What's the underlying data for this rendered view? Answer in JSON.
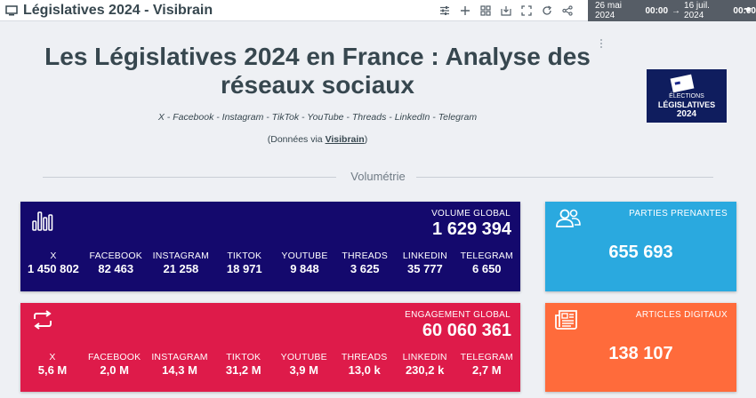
{
  "app": {
    "title": "Législatives 2024 - Visibrain",
    "toolbar_icons": [
      "sliders-icon",
      "plus-icon",
      "grid-icon",
      "download-icon",
      "fullscreen-icon",
      "refresh-icon",
      "share-icon"
    ],
    "date_range": {
      "start_date": "26 mai 2024",
      "start_time": "00:00",
      "arrow": "→",
      "end_date": "16 juil. 2024",
      "end_time": "00:00"
    }
  },
  "header": {
    "title": "Les Législatives 2024 en France : Analyse des réseaux sociaux",
    "networks": "X - Facebook - Instagram - TikTok - YouTube - Threads - LinkedIn - Telegram",
    "source_prefix": "(Données via ",
    "source_link": "Visibrain",
    "source_suffix": ")",
    "logo": {
      "line1": "ÉLECTIONS",
      "line2": "LÉGISLATIVES",
      "line3": "2024"
    }
  },
  "section": {
    "label": "Volumétrie"
  },
  "volume": {
    "label": "VOLUME GLOBAL",
    "value": "1 629 394",
    "color": "#14096d",
    "metrics": [
      {
        "label": "X",
        "value": "1 450 802"
      },
      {
        "label": "FACEBOOK",
        "value": "82 463"
      },
      {
        "label": "INSTAGRAM",
        "value": "21 258"
      },
      {
        "label": "TIKTOK",
        "value": "18 971"
      },
      {
        "label": "YOUTUBE",
        "value": "9 848"
      },
      {
        "label": "THREADS",
        "value": "3 625"
      },
      {
        "label": "LINKEDIN",
        "value": "35 777"
      },
      {
        "label": "TELEGRAM",
        "value": "6 650"
      }
    ]
  },
  "engagement": {
    "label": "ENGAGEMENT GLOBAL",
    "value": "60 060 361",
    "color": "#de1b4a",
    "metrics": [
      {
        "label": "X",
        "value": "5,6 M"
      },
      {
        "label": "FACEBOOK",
        "value": "2,0 M"
      },
      {
        "label": "INSTAGRAM",
        "value": "14,3 M"
      },
      {
        "label": "TIKTOK",
        "value": "31,2 M"
      },
      {
        "label": "YOUTUBE",
        "value": "3,9 M"
      },
      {
        "label": "THREADS",
        "value": "13,0 k"
      },
      {
        "label": "LINKEDIN",
        "value": "230,2 k"
      },
      {
        "label": "TELEGRAM",
        "value": "2,7 M"
      }
    ]
  },
  "parties": {
    "label": "PARTIES PRENANTES",
    "value": "655 693",
    "color": "#2aa9df"
  },
  "articles": {
    "label": "ARTICLES DIGITAUX",
    "value": "138 107",
    "color": "#ff6b3b"
  }
}
